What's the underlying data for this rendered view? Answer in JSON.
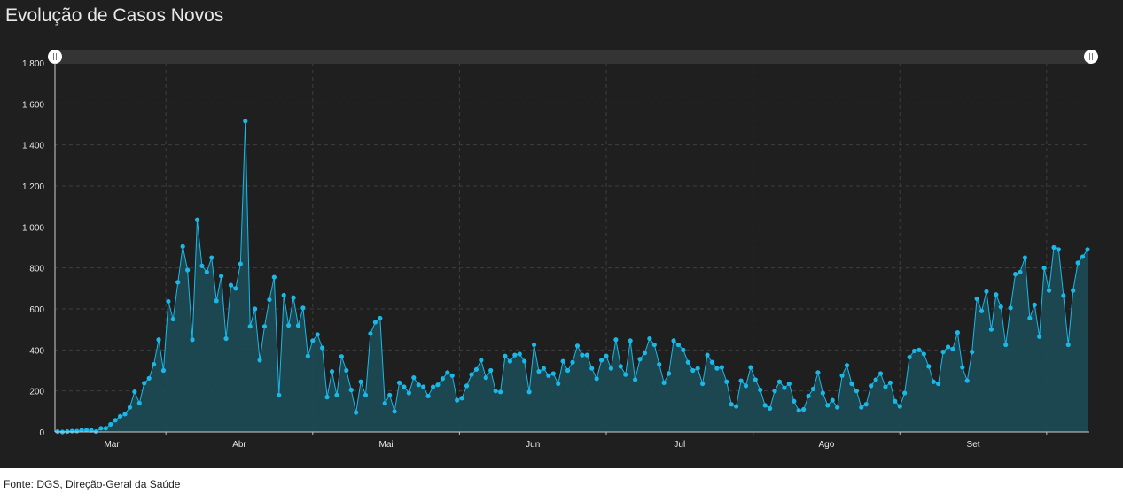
{
  "title": "Evolução de Casos Novos",
  "source": "Fonte: DGS, Direção-Geral da Saúde",
  "colors": {
    "background": "#1f1f1f",
    "line": "#1ab8e8",
    "area": "#1c4a54",
    "grid": "#3e3e3e",
    "text": "#e8e8e8"
  },
  "chart_data": {
    "type": "area",
    "title": "Evolução de Casos Novos",
    "xlabel": "",
    "ylabel": "",
    "ylim": [
      0,
      1800
    ],
    "grid": true,
    "legend": "none",
    "range_slider": true,
    "y_ticks": [
      {
        "value": 0,
        "label": "0"
      },
      {
        "value": 200,
        "label": "200"
      },
      {
        "value": 400,
        "label": "400"
      },
      {
        "value": 600,
        "label": "600"
      },
      {
        "value": 800,
        "label": "800"
      },
      {
        "value": 1000,
        "label": "1 000"
      },
      {
        "value": 1200,
        "label": "1 200"
      },
      {
        "value": 1400,
        "label": "1 400"
      },
      {
        "value": 1600,
        "label": "1 600"
      },
      {
        "value": 1800,
        "label": "1 800"
      }
    ],
    "x_tick_labels": [
      "Mar",
      "Abr",
      "Mai",
      "Jun",
      "Jul",
      "Ago",
      "Set"
    ],
    "series": [
      {
        "values": [
          2,
          0,
          2,
          4,
          4,
          9,
          9,
          8,
          2,
          18,
          18,
          37,
          57,
          76,
          87,
          120,
          196,
          141,
          238,
          262,
          330,
          450,
          300,
          637,
          550,
          730,
          905,
          790,
          450,
          1035,
          810,
          780,
          850,
          640,
          760,
          455,
          716,
          700,
          820,
          1516,
          515,
          600,
          350,
          515,
          645,
          755,
          180,
          667,
          520,
          655,
          519,
          605,
          370,
          445,
          475,
          410,
          170,
          295,
          180,
          368,
          300,
          205,
          95,
          245,
          180,
          480,
          535,
          555,
          140,
          180,
          100,
          240,
          220,
          190,
          265,
          230,
          220,
          175,
          220,
          230,
          260,
          290,
          275,
          155,
          165,
          225,
          280,
          305,
          350,
          265,
          300,
          200,
          195,
          370,
          345,
          375,
          380,
          345,
          195,
          425,
          295,
          310,
          275,
          285,
          235,
          345,
          300,
          340,
          420,
          375,
          375,
          310,
          260,
          350,
          370,
          310,
          450,
          320,
          280,
          445,
          255,
          355,
          385,
          455,
          425,
          330,
          240,
          285,
          445,
          425,
          400,
          340,
          300,
          310,
          235,
          375,
          340,
          310,
          315,
          245,
          135,
          125,
          250,
          225,
          315,
          255,
          205,
          130,
          115,
          200,
          245,
          215,
          235,
          150,
          105,
          110,
          175,
          210,
          290,
          190,
          130,
          155,
          120,
          275,
          325,
          235,
          200,
          120,
          135,
          225,
          255,
          285,
          220,
          240,
          150,
          125,
          190,
          365,
          395,
          400,
          380,
          320,
          245,
          235,
          390,
          415,
          405,
          485,
          315,
          250,
          390,
          650,
          590,
          685,
          500,
          670,
          610,
          425,
          605,
          770,
          780,
          850,
          555,
          620,
          465,
          800,
          690,
          900,
          890,
          665,
          425,
          690,
          825,
          855,
          890
        ]
      }
    ]
  }
}
